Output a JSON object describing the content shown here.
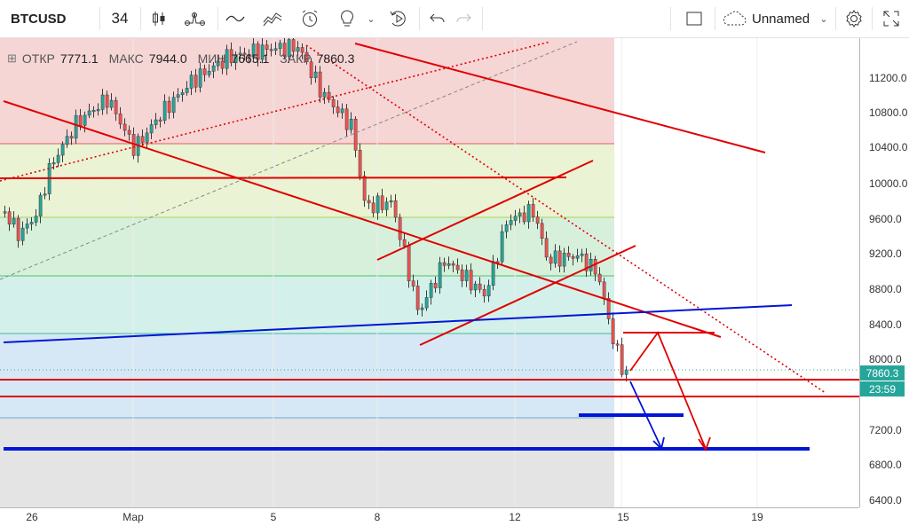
{
  "toolbar": {
    "symbol": "BTCUSD",
    "interval": "34",
    "layout_name": "Unnamed",
    "icons": [
      "candles-icon",
      "indicators-icon",
      "line-tool-icon",
      "compare-icon",
      "alert-icon",
      "idea-icon",
      "replay-icon",
      "undo-icon",
      "redo-icon",
      "layout-icon",
      "cloud-icon",
      "settings-icon",
      "fullscreen-icon"
    ]
  },
  "legend": {
    "open_label": "ОТКР",
    "open": "7771.1",
    "high_label": "МАКС",
    "high": "7944.0",
    "low_label": "МИН",
    "low": "7665.1",
    "close_label": "ЗАКР",
    "close": "7860.3"
  },
  "price_axis": {
    "ticks": [
      "11200.0",
      "10800.0",
      "10400.0",
      "10000.0",
      "9600.0",
      "9200.0",
      "8800.0",
      "8400.0",
      "8000.0",
      "7200.0",
      "6800.0",
      "6400.0"
    ],
    "last_price": "7860.3",
    "countdown": "23:59"
  },
  "time_axis": {
    "ticks": [
      "26",
      "Мар",
      "5",
      "8",
      "12",
      "15",
      "19"
    ]
  },
  "colors": {
    "up": "#26a69a",
    "down": "#ef5350",
    "trend": "#e00000",
    "support": "#0015d6"
  }
}
